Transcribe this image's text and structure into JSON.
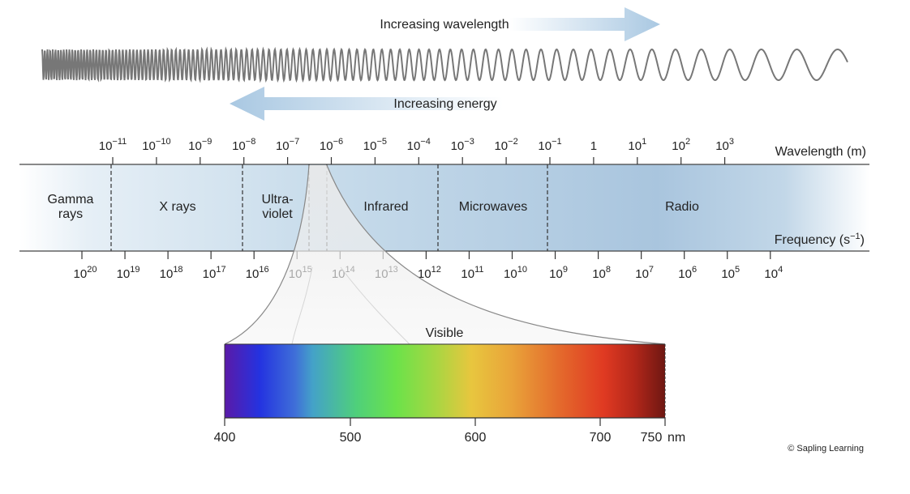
{
  "wave_label": "Increasing wavelength",
  "energy_label": "Increasing energy",
  "wavelength_axis": {
    "title": "Wavelength (m)",
    "ticks": [
      {
        "b": "10",
        "e": "−11"
      },
      {
        "b": "10",
        "e": "−10"
      },
      {
        "b": "10",
        "e": "−9"
      },
      {
        "b": "10",
        "e": "−8"
      },
      {
        "b": "10",
        "e": "−7"
      },
      {
        "b": "10",
        "e": "−6"
      },
      {
        "b": "10",
        "e": "−5"
      },
      {
        "b": "10",
        "e": "−4"
      },
      {
        "b": "10",
        "e": "−3"
      },
      {
        "b": "10",
        "e": "−2"
      },
      {
        "b": "10",
        "e": "−1"
      },
      {
        "b": "1",
        "e": ""
      },
      {
        "b": "10",
        "e": "1"
      },
      {
        "b": "10",
        "e": "2"
      },
      {
        "b": "10",
        "e": "3"
      }
    ]
  },
  "frequency_axis": {
    "title_base": "Frequency (s",
    "title_exp": "−1",
    "title_end": ")",
    "ticks": [
      {
        "b": "10",
        "e": "20"
      },
      {
        "b": "10",
        "e": "19"
      },
      {
        "b": "10",
        "e": "18"
      },
      {
        "b": "10",
        "e": "17"
      },
      {
        "b": "10",
        "e": "16"
      },
      {
        "b": "10",
        "e": "15"
      },
      {
        "b": "10",
        "e": "14"
      },
      {
        "b": "10",
        "e": "13"
      },
      {
        "b": "10",
        "e": "12"
      },
      {
        "b": "10",
        "e": "11"
      },
      {
        "b": "10",
        "e": "10"
      },
      {
        "b": "10",
        "e": "9"
      },
      {
        "b": "10",
        "e": "8"
      },
      {
        "b": "10",
        "e": "7"
      },
      {
        "b": "10",
        "e": "6"
      },
      {
        "b": "10",
        "e": "5"
      },
      {
        "b": "10",
        "e": "4"
      }
    ]
  },
  "regions": [
    {
      "lines": [
        "Gamma",
        "rays"
      ]
    },
    {
      "lines": [
        "X rays"
      ]
    },
    {
      "lines": [
        "Ultra-",
        "violet"
      ]
    },
    {
      "lines": [
        "Infrared"
      ]
    },
    {
      "lines": [
        "Microwaves"
      ]
    },
    {
      "lines": [
        "Radio"
      ]
    }
  ],
  "visible": {
    "label": "Visible",
    "ticks": [
      "400",
      "500",
      "600",
      "700",
      "750"
    ],
    "unit": "nm"
  },
  "credit": "© Sapling Learning"
}
